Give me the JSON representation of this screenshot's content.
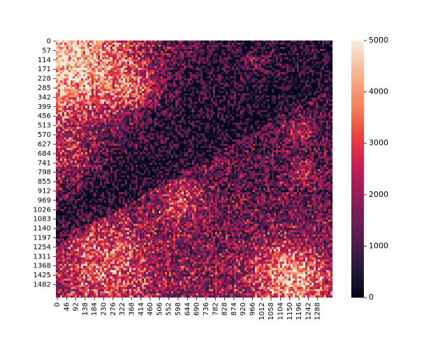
{
  "chart_data": {
    "type": "heatmap",
    "title": "",
    "xlabel": "",
    "ylabel": "",
    "x_tick_labels": [
      "0",
      "46",
      "92",
      "138",
      "184",
      "230",
      "276",
      "322",
      "368",
      "414",
      "460",
      "506",
      "552",
      "598",
      "644",
      "690",
      "736",
      "782",
      "828",
      "874",
      "920",
      "966",
      "1012",
      "1058",
      "1104",
      "1150",
      "1196",
      "1242",
      "1288"
    ],
    "y_tick_labels": [
      "0",
      "57",
      "114",
      "171",
      "228",
      "285",
      "342",
      "399",
      "456",
      "513",
      "570",
      "627",
      "684",
      "741",
      "798",
      "855",
      "912",
      "969",
      "1026",
      "1083",
      "1140",
      "1197",
      "1254",
      "1311",
      "1368",
      "1425",
      "1482"
    ],
    "x_range": [
      0,
      1320
    ],
    "y_range": [
      0,
      1520
    ],
    "colorbar": {
      "min": 0,
      "max": 5000,
      "tick_labels": [
        "0",
        "1000",
        "2000",
        "3000",
        "4000",
        "5000"
      ],
      "colormap": "rocket",
      "colors": [
        "#03051a",
        "#2b1b3f",
        "#5b1e51",
        "#8c1d5a",
        "#c01d55",
        "#e83f3f",
        "#f5845e",
        "#f6b48f",
        "#faebdd"
      ]
    },
    "approximate_regions": [
      {
        "description": "upper-left bright band",
        "level": 3500
      },
      {
        "description": "dark diagonal channel",
        "level": 300
      },
      {
        "description": "lower-left dense cluster",
        "level": 2800
      },
      {
        "description": "bottom-right bright patch",
        "level": 4200
      },
      {
        "description": "right-side sparse field",
        "level": 1200
      }
    ]
  }
}
